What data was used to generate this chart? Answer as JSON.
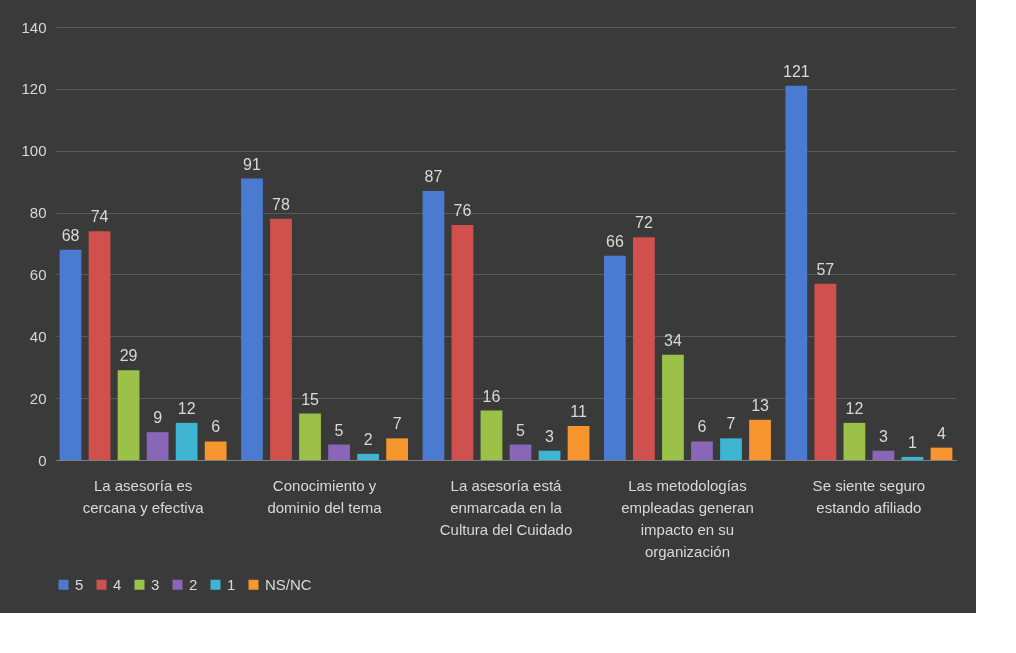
{
  "chart_data": {
    "type": "bar",
    "categories": [
      "La asesoría es cercana y efectiva",
      "Conocimiento y dominio del tema",
      "La asesoría está enmarcada en la Cultura del Cuidado",
      "Las metodologías empleadas generan impacto en su organización",
      "Se siente seguro estando afiliado"
    ],
    "series": [
      {
        "name": "5",
        "color": "#4a7bd0",
        "values": [
          68,
          91,
          87,
          66,
          121
        ]
      },
      {
        "name": "4",
        "color": "#d0504d",
        "values": [
          74,
          78,
          76,
          72,
          57
        ]
      },
      {
        "name": "3",
        "color": "#9bc148",
        "values": [
          29,
          15,
          16,
          34,
          12
        ]
      },
      {
        "name": "2",
        "color": "#8a66b8",
        "values": [
          9,
          5,
          5,
          6,
          3
        ]
      },
      {
        "name": "1",
        "color": "#3fb5d4",
        "values": [
          12,
          2,
          3,
          7,
          1
        ]
      },
      {
        "name": "NS/NC",
        "color": "#f7962e",
        "values": [
          6,
          7,
          11,
          13,
          4
        ]
      }
    ],
    "ylim": [
      0,
      140
    ],
    "yticks": [
      0,
      20,
      40,
      60,
      80,
      100,
      120,
      140
    ],
    "grid": "y",
    "legend": "bottom",
    "data_labels": true
  }
}
